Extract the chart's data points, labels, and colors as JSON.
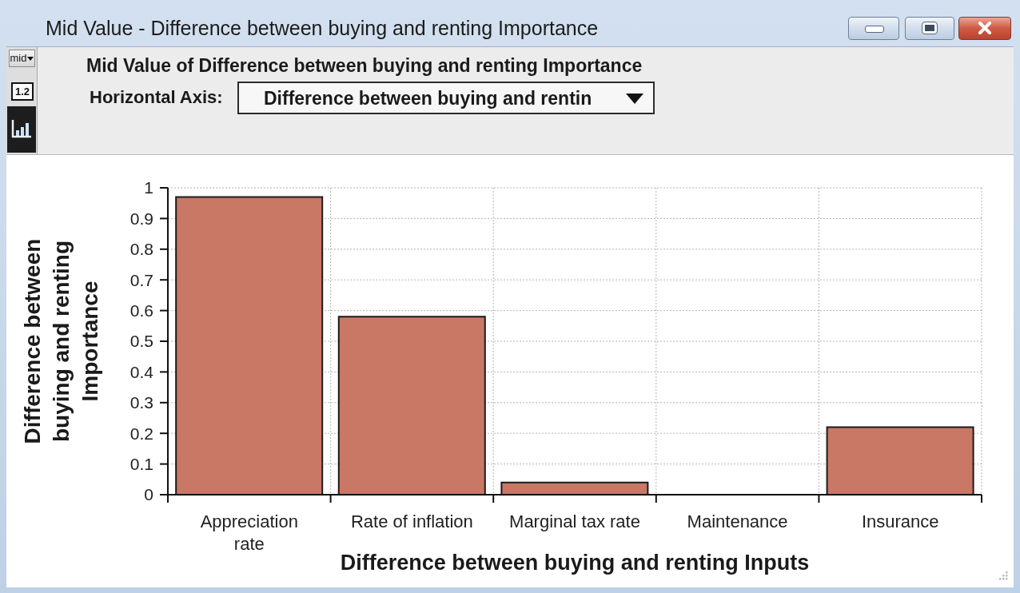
{
  "chart_data": {
    "type": "bar",
    "title": "Mid Value of Difference between buying and renting Importance",
    "xlabel": "Difference between buying and renting Inputs",
    "ylabel": "Difference between buying and renting Importance",
    "categories": [
      "Appreciation rate",
      "Rate of inflation",
      "Marginal tax rate",
      "Maintenance",
      "Insurance"
    ],
    "values": [
      0.97,
      0.58,
      0.04,
      0,
      0.22
    ],
    "color": "#c97865",
    "ylim": [
      0,
      1
    ],
    "yticks": [
      0,
      0.1,
      0.2,
      0.3,
      0.4,
      0.5,
      0.6,
      0.7,
      0.8,
      0.9,
      1
    ],
    "grid": true,
    "annotations": [
      "Mid Value - Difference between buying and renting Importance",
      "mid",
      "1.2",
      "Horizontal Axis:",
      "Difference between buying and rentin"
    ]
  }
}
